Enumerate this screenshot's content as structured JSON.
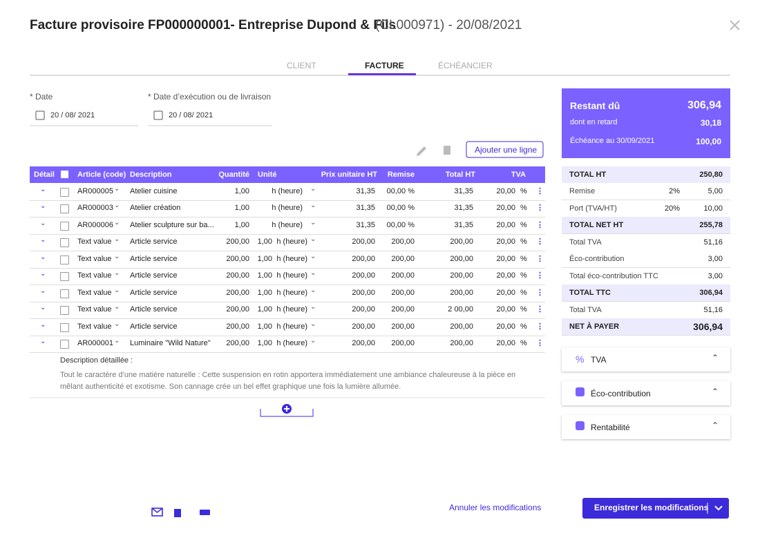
{
  "header": {
    "title": "Facture provisoire FP000000001- Entreprise Dupond & Fils",
    "subtitle": "(CL000971) - 20/08/2021"
  },
  "tabs": {
    "items": [
      "CLIENT",
      "FACTURE",
      "ÉCHÉANCIER"
    ],
    "active": 1
  },
  "fields": [
    {
      "label": "* Date",
      "value": "20 / 08/ 2021"
    },
    {
      "label": "* Date d’exécution ou de livraison",
      "value": "20 / 08/ 2021"
    }
  ],
  "toolbar": {
    "add_line": "Ajouter une ligne"
  },
  "table": {
    "columns": [
      "Détail",
      "Article (code)",
      "Description",
      "Quantité",
      "Unité",
      "Prix unitaire HT",
      "Remise",
      "Total HT",
      "TVA"
    ],
    "rows": [
      {
        "code": "AR000005",
        "description": "Atelier cuisine",
        "quantity": "1,00",
        "unit": "h (heure)",
        "price": "31,35",
        "discount": "00,00 %",
        "total": "31,35",
        "tva": "20,00",
        "tva_unit": "%"
      },
      {
        "code": "AR000003",
        "description": "Atelier création",
        "quantity": "1,00",
        "unit": "h (heure)",
        "price": "31,35",
        "discount": "00,00 %",
        "total": "31,35",
        "tva": "20,00",
        "tva_unit": "%"
      },
      {
        "code": "AR000006",
        "description": "Atelier sculpture sur ba...",
        "quantity": "1,00",
        "unit": "h (heure)",
        "price": "31,35",
        "discount": "00,00 %",
        "total": "31,35",
        "tva": "20,00",
        "tva_unit": "%"
      },
      {
        "code": "Text value",
        "description": "Article service",
        "quantity": "200,00",
        "unit_qty": "1,00",
        "unit": "h (heure)",
        "price": "200,00",
        "discount": "200,00",
        "total": "200,00",
        "tva": "20,00",
        "tva_unit": "%"
      },
      {
        "code": "Text value",
        "description": "Article service",
        "quantity": "200,00",
        "unit_qty": "1,00",
        "unit": "h (heure)",
        "price": "200,00",
        "discount": "200,00",
        "total": "200,00",
        "tva": "20,00",
        "tva_unit": "%"
      },
      {
        "code": "Text value",
        "description": "Article service",
        "quantity": "200,00",
        "unit_qty": "1,00",
        "unit": "h (heure)",
        "price": "200,00",
        "discount": "200,00",
        "total": "200,00",
        "tva": "20,00",
        "tva_unit": "%"
      },
      {
        "code": "Text value",
        "description": "Article service",
        "quantity": "200,00",
        "unit_qty": "1,00",
        "unit": "h (heure)",
        "price": "200,00",
        "discount": "200,00",
        "total": "200,00",
        "tva": "20,00",
        "tva_unit": "%"
      },
      {
        "code": "Text value",
        "description": "Article service",
        "quantity": "200,00",
        "unit_qty": "1,00",
        "unit": "h (heure)",
        "price": "200,00",
        "discount": "200,00",
        "total": "2 00,00",
        "tva": "20,00",
        "tva_unit": "%"
      },
      {
        "code": "Text value",
        "description": "Article service",
        "quantity": "200,00",
        "unit_qty": "1,00",
        "unit": "h (heure)",
        "price": "200,00",
        "discount": "200,00",
        "total": "200,00",
        "tva": "20,00",
        "tva_unit": "%"
      },
      {
        "code": "AR000001",
        "description": "Luminaire \"Wild Nature\"",
        "quantity": "200,00",
        "unit_qty": "1,00",
        "unit": "h (heure)",
        "price": "200,00",
        "discount": "200,00",
        "total": "200,00",
        "tva": "20,00",
        "tva_unit": "%"
      }
    ],
    "detail": {
      "label": "Description détaillée :",
      "text": "Tout le caractère d’une matière naturelle : Cette suspension en rotin apportera immédiatement une ambiance chaleureuse à la pièce en mêlant authenticité et exotisme. Son cannage crée un bel effet graphique une fois la lumière allumée."
    }
  },
  "summary": {
    "due": {
      "label": "Restant dû",
      "value": "306,94"
    },
    "late": {
      "label": "dont en retard",
      "value": "30,18"
    },
    "deadline": {
      "label": "Échéance au 30/09/2021",
      "value": "100,00"
    }
  },
  "totals": [
    {
      "label": "TOTAL HT",
      "value": "250,80",
      "highlight": true
    },
    {
      "label": "Remise",
      "rate": "2%",
      "value": "5,00"
    },
    {
      "label": "Port (TVA/HT)",
      "rate": "20%",
      "value": "10,00"
    },
    {
      "label": "TOTAL NET HT",
      "value": "255,78",
      "highlight": true
    },
    {
      "label": "Total TVA",
      "value": "51,16"
    },
    {
      "label": "Éco-contribution",
      "value": "3,00"
    },
    {
      "label": "Total éco-contribution TTC",
      "value": "3,00"
    },
    {
      "label": "TOTAL TTC",
      "value": "306,94",
      "highlight": true
    },
    {
      "label": "Total TVA",
      "value": "51,16"
    },
    {
      "label": "NET À PAYER",
      "value": "306,94",
      "highlight": true
    }
  ],
  "panels": [
    "TVA",
    "Éco-contribution",
    "Rentabilité"
  ],
  "footer": {
    "cancel": "Annuler les modifications",
    "save": "Enregistrer les modifications"
  }
}
